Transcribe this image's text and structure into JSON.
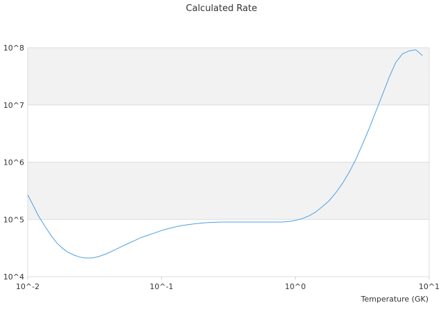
{
  "chart_data": {
    "type": "line",
    "title": "Calculated Rate",
    "xlabel": "Temperature (GK)",
    "ylabel": "",
    "x_scale": "log",
    "y_scale": "log",
    "xlim": [
      0.01,
      10
    ],
    "ylim": [
      10000,
      100000000
    ],
    "x_ticks": [
      0.01,
      0.1,
      1,
      10
    ],
    "x_tick_labels": [
      "10^-2",
      "10^-1",
      "10^0",
      "10^1"
    ],
    "y_ticks": [
      10000,
      100000,
      1000000,
      10000000,
      100000000
    ],
    "y_tick_labels": [
      "10^4",
      "10^5",
      "10^6",
      "10^7",
      "10^8"
    ],
    "grid": "horizontal",
    "alternating_bands": true,
    "legend": "none",
    "series": [
      {
        "color": "#4a9fe3",
        "x": [
          0.01,
          0.011,
          0.012,
          0.0135,
          0.015,
          0.0165,
          0.018,
          0.0198,
          0.022,
          0.0245,
          0.027,
          0.0305,
          0.034,
          0.0385,
          0.0435,
          0.049,
          0.055,
          0.062,
          0.07,
          0.079,
          0.089,
          0.1,
          0.112,
          0.126,
          0.141,
          0.158,
          0.178,
          0.2,
          0.224,
          0.251,
          0.282,
          0.316,
          0.355,
          0.398,
          0.447,
          0.501,
          0.562,
          0.631,
          0.708,
          0.794,
          0.891,
          1.0,
          1.12,
          1.26,
          1.41,
          1.58,
          1.78,
          2.0,
          2.24,
          2.51,
          2.82,
          3.16,
          3.55,
          3.98,
          4.47,
          5.01,
          5.62,
          6.31,
          7.08,
          7.94,
          8.91
        ],
        "y": [
          270000,
          175000,
          117000,
          75000,
          52000,
          39000,
          32000,
          27000,
          24000,
          22000,
          21200,
          21200,
          22500,
          25000,
          28500,
          32500,
          37000,
          42000,
          48000,
          53000,
          58000,
          64000,
          69000,
          74000,
          78000,
          81000,
          84000,
          86500,
          88000,
          89000,
          90000,
          90000,
          90000,
          90000,
          90000,
          90000,
          90000,
          90000,
          90000,
          90000,
          92000,
          96000,
          103000,
          115000,
          133000,
          165000,
          210000,
          290000,
          420000,
          650000,
          1100000,
          2000000,
          3800000,
          7500000,
          15000000,
          30000000,
          55000000,
          78000000,
          88000000,
          92000000,
          73000000
        ]
      }
    ]
  }
}
